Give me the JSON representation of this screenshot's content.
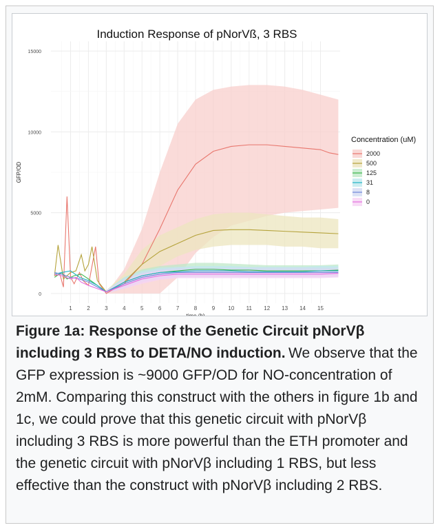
{
  "figure": {
    "caption_title": "Figure 1a: Response of the Genetic Circuit pNorVβ including 3 RBS to DETA/NO induction.",
    "caption_body": "We observe that the GFP expression is ~9000 GFP/OD for NO-concentration of 2mM. Comparing this construct with the others in figure 1b and 1c, we could prove that this genetic circuit with pNorVβ including 3 RBS is more powerful than the ETH promoter and the genetic circuit with pNorVβ including 1 RBS, but less effective than the construct with pNorVβ including 2 RBS."
  },
  "chart_data": {
    "type": "line",
    "title": "Induction Response of pNorVß, 3 RBS",
    "xlabel": "time (h)",
    "ylabel": "GFP/OD",
    "xlim": [
      -0.1,
      16.1
    ],
    "ylim": [
      -600,
      15600
    ],
    "x_ticks": [
      1,
      2,
      3,
      4,
      5,
      6,
      7,
      8,
      9,
      10,
      11,
      12,
      13,
      14,
      15
    ],
    "y_ticks": [
      0,
      5000,
      10000,
      15000
    ],
    "grid": true,
    "legend": {
      "title": "Concentration (uM)",
      "position": "right"
    },
    "series": [
      {
        "name": "2000",
        "color": "#e8766d",
        "band_color": "#f8cfcc",
        "points": [
          [
            0.1,
            1100
          ],
          [
            0.4,
            1200
          ],
          [
            0.6,
            400
          ],
          [
            0.8,
            6000
          ],
          [
            1.0,
            1000
          ],
          [
            1.2,
            600
          ],
          [
            1.5,
            1300
          ],
          [
            1.7,
            800
          ],
          [
            2.0,
            500
          ],
          [
            2.4,
            2900
          ],
          [
            2.6,
            600
          ],
          [
            3.0,
            0
          ],
          [
            3.3,
            200
          ],
          [
            4,
            600
          ],
          [
            5,
            1800
          ],
          [
            6,
            4000
          ],
          [
            7,
            6400
          ],
          [
            8,
            8000
          ],
          [
            9,
            8800
          ],
          [
            10,
            9100
          ],
          [
            11,
            9200
          ],
          [
            12,
            9200
          ],
          [
            13,
            9100
          ],
          [
            14,
            9000
          ],
          [
            15,
            8900
          ],
          [
            15.5,
            8700
          ],
          [
            16,
            8600
          ]
        ],
        "band": [
          [
            3,
            0,
            0
          ],
          [
            4,
            0,
            1500
          ],
          [
            5,
            0,
            4000
          ],
          [
            6,
            0,
            7500
          ],
          [
            7,
            1000,
            10500
          ],
          [
            8,
            2500,
            12000
          ],
          [
            9,
            3500,
            12600
          ],
          [
            10,
            4200,
            12800
          ],
          [
            11,
            4500,
            12900
          ],
          [
            12,
            4800,
            12900
          ],
          [
            13,
            5000,
            12800
          ],
          [
            14,
            5100,
            12600
          ],
          [
            15,
            5200,
            12300
          ],
          [
            16,
            5300,
            12000
          ]
        ]
      },
      {
        "name": "500",
        "color": "#b4a23a",
        "band_color": "#ece5bf",
        "points": [
          [
            0.1,
            1100
          ],
          [
            0.3,
            3000
          ],
          [
            0.6,
            900
          ],
          [
            1.0,
            1300
          ],
          [
            1.3,
            1400
          ],
          [
            1.6,
            2400
          ],
          [
            1.8,
            1400
          ],
          [
            2.0,
            1800
          ],
          [
            2.2,
            2900
          ],
          [
            2.5,
            800
          ],
          [
            3.0,
            100
          ],
          [
            4,
            700
          ],
          [
            5,
            1800
          ],
          [
            6,
            2600
          ],
          [
            7,
            3100
          ],
          [
            8,
            3600
          ],
          [
            9,
            3900
          ],
          [
            10,
            3950
          ],
          [
            11,
            3950
          ],
          [
            12,
            3900
          ],
          [
            13,
            3850
          ],
          [
            14,
            3800
          ],
          [
            15,
            3750
          ],
          [
            16,
            3700
          ]
        ],
        "band": [
          [
            3,
            0,
            200
          ],
          [
            4,
            300,
            1200
          ],
          [
            5,
            1000,
            2700
          ],
          [
            6,
            1700,
            3600
          ],
          [
            7,
            2300,
            4100
          ],
          [
            8,
            2700,
            4600
          ],
          [
            9,
            2900,
            4900
          ],
          [
            10,
            3000,
            5000
          ],
          [
            11,
            3000,
            5000
          ],
          [
            12,
            3000,
            4900
          ],
          [
            13,
            2900,
            4800
          ],
          [
            14,
            2900,
            4700
          ],
          [
            15,
            2800,
            4700
          ],
          [
            16,
            2800,
            4600
          ]
        ]
      },
      {
        "name": "125",
        "color": "#39b54a",
        "band_color": "#bfe8c8",
        "points": [
          [
            0.1,
            1000
          ],
          [
            0.5,
            1300
          ],
          [
            0.8,
            900
          ],
          [
            1.2,
            1100
          ],
          [
            1.6,
            1200
          ],
          [
            2.0,
            900
          ],
          [
            2.5,
            500
          ],
          [
            3.0,
            100
          ],
          [
            4,
            700
          ],
          [
            5,
            1100
          ],
          [
            6,
            1300
          ],
          [
            7,
            1400
          ],
          [
            8,
            1500
          ],
          [
            9,
            1500
          ],
          [
            10,
            1450
          ],
          [
            11,
            1450
          ],
          [
            12,
            1400
          ],
          [
            13,
            1400
          ],
          [
            14,
            1400
          ],
          [
            15,
            1400
          ],
          [
            16,
            1450
          ]
        ],
        "band": [
          [
            3,
            0,
            200
          ],
          [
            4,
            400,
            1000
          ],
          [
            5,
            800,
            1500
          ],
          [
            6,
            1000,
            1700
          ],
          [
            7,
            1100,
            1800
          ],
          [
            8,
            1100,
            1900
          ],
          [
            9,
            1100,
            1900
          ],
          [
            10,
            1100,
            1850
          ],
          [
            11,
            1100,
            1800
          ],
          [
            12,
            1100,
            1750
          ],
          [
            13,
            1100,
            1750
          ],
          [
            14,
            1100,
            1750
          ],
          [
            15,
            1100,
            1750
          ],
          [
            16,
            1100,
            1800
          ]
        ]
      },
      {
        "name": "31",
        "color": "#1fb3c4",
        "band_color": "#bfe8ee",
        "points": [
          [
            0.1,
            1200
          ],
          [
            0.5,
            1300
          ],
          [
            1.0,
            1400
          ],
          [
            1.5,
            1000
          ],
          [
            2.0,
            800
          ],
          [
            2.5,
            500
          ],
          [
            3.0,
            100
          ],
          [
            4,
            700
          ],
          [
            5,
            1100
          ],
          [
            6,
            1300
          ],
          [
            7,
            1350
          ],
          [
            8,
            1400
          ],
          [
            9,
            1400
          ],
          [
            10,
            1400
          ],
          [
            11,
            1350
          ],
          [
            12,
            1350
          ],
          [
            13,
            1350
          ],
          [
            14,
            1350
          ],
          [
            15,
            1400
          ],
          [
            16,
            1400
          ]
        ],
        "band": [
          [
            3,
            0,
            200
          ],
          [
            4,
            400,
            1000
          ],
          [
            5,
            800,
            1400
          ],
          [
            6,
            1000,
            1600
          ],
          [
            7,
            1050,
            1650
          ],
          [
            8,
            1100,
            1700
          ],
          [
            9,
            1100,
            1700
          ],
          [
            10,
            1100,
            1700
          ],
          [
            11,
            1050,
            1650
          ],
          [
            12,
            1050,
            1650
          ],
          [
            13,
            1050,
            1650
          ],
          [
            14,
            1050,
            1650
          ],
          [
            15,
            1100,
            1700
          ],
          [
            16,
            1100,
            1700
          ]
        ]
      },
      {
        "name": "8",
        "color": "#6f87d8",
        "band_color": "#d3dbf3",
        "points": [
          [
            0.1,
            1300
          ],
          [
            0.5,
            1200
          ],
          [
            1.0,
            1000
          ],
          [
            1.5,
            900
          ],
          [
            2.0,
            700
          ],
          [
            2.5,
            400
          ],
          [
            3.0,
            100
          ],
          [
            4,
            600
          ],
          [
            5,
            1000
          ],
          [
            6,
            1200
          ],
          [
            7,
            1300
          ],
          [
            8,
            1300
          ],
          [
            9,
            1300
          ],
          [
            10,
            1300
          ],
          [
            11,
            1300
          ],
          [
            12,
            1300
          ],
          [
            13,
            1300
          ],
          [
            14,
            1300
          ],
          [
            15,
            1300
          ],
          [
            16,
            1300
          ]
        ],
        "band": [
          [
            3,
            0,
            200
          ],
          [
            4,
            300,
            900
          ],
          [
            5,
            700,
            1300
          ],
          [
            6,
            900,
            1500
          ],
          [
            7,
            1000,
            1600
          ],
          [
            8,
            1000,
            1600
          ],
          [
            9,
            1000,
            1600
          ],
          [
            10,
            1000,
            1600
          ],
          [
            11,
            1000,
            1600
          ],
          [
            12,
            1000,
            1600
          ],
          [
            13,
            1000,
            1600
          ],
          [
            14,
            1000,
            1600
          ],
          [
            15,
            1000,
            1600
          ],
          [
            16,
            1000,
            1600
          ]
        ]
      },
      {
        "name": "0",
        "color": "#e56fe0",
        "band_color": "#f6d3f4",
        "points": [
          [
            0.1,
            1200
          ],
          [
            0.5,
            1100
          ],
          [
            1.0,
            900
          ],
          [
            1.3,
            1000
          ],
          [
            1.6,
            700
          ],
          [
            2.0,
            500
          ],
          [
            2.5,
            300
          ],
          [
            3.0,
            100
          ],
          [
            4,
            500
          ],
          [
            5,
            900
          ],
          [
            6,
            1100
          ],
          [
            7,
            1200
          ],
          [
            8,
            1200
          ],
          [
            9,
            1200
          ],
          [
            10,
            1200
          ],
          [
            11,
            1200
          ],
          [
            12,
            1200
          ],
          [
            13,
            1200
          ],
          [
            14,
            1200
          ],
          [
            15,
            1200
          ],
          [
            16,
            1250
          ]
        ],
        "band": [
          [
            3,
            0,
            200
          ],
          [
            4,
            300,
            800
          ],
          [
            5,
            600,
            1200
          ],
          [
            6,
            850,
            1400
          ],
          [
            7,
            950,
            1450
          ],
          [
            8,
            950,
            1450
          ],
          [
            9,
            950,
            1450
          ],
          [
            10,
            950,
            1450
          ],
          [
            11,
            950,
            1450
          ],
          [
            12,
            950,
            1450
          ],
          [
            13,
            950,
            1450
          ],
          [
            14,
            950,
            1450
          ],
          [
            15,
            950,
            1450
          ],
          [
            16,
            1000,
            1500
          ]
        ]
      }
    ]
  }
}
